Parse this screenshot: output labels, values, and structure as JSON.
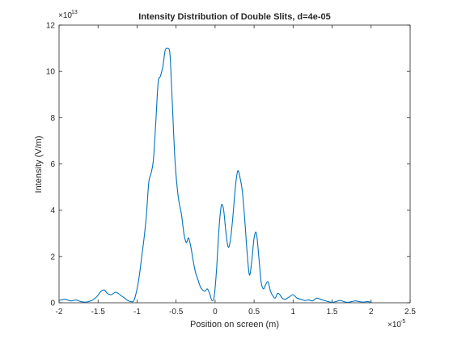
{
  "chart_data": {
    "type": "line",
    "title": "Intensity Distribution of Double Slits, d=4e-05",
    "xlabel": "Position on screen (m)",
    "ylabel": "Intensity (V/m)",
    "x_exponent_label": "×10",
    "x_exponent_power": "-5",
    "y_exponent_label": "×10",
    "y_exponent_power": "13",
    "xlim": [
      -2,
      2.5
    ],
    "ylim": [
      0,
      12
    ],
    "xticks": [
      -2,
      -1.5,
      -1,
      -0.5,
      0,
      0.5,
      1,
      1.5,
      2,
      2.5
    ],
    "xtick_labels": [
      "-2",
      "-1.5",
      "-1",
      "-0.5",
      "0",
      "0.5",
      "1",
      "1.5",
      "2",
      "2.5"
    ],
    "yticks": [
      0,
      2,
      4,
      6,
      8,
      10,
      12
    ],
    "ytick_labels": [
      "0",
      "2",
      "4",
      "6",
      "8",
      "10",
      "12"
    ],
    "grid": false,
    "line_color": "#0072bd",
    "series": [
      {
        "x": [
          -2.0,
          -1.92,
          -1.85,
          -1.78,
          -1.72,
          -1.65,
          -1.58,
          -1.52,
          -1.46,
          -1.42,
          -1.38,
          -1.33,
          -1.28,
          -1.24,
          -1.2,
          -1.16,
          -1.12,
          -1.08,
          -1.04,
          -1.0,
          -0.97,
          -0.94,
          -0.91,
          -0.88,
          -0.85,
          -0.82,
          -0.79,
          -0.76,
          -0.73,
          -0.7,
          -0.67,
          -0.64,
          -0.61,
          -0.58,
          -0.56,
          -0.54,
          -0.52,
          -0.5,
          -0.48,
          -0.46,
          -0.43,
          -0.4,
          -0.37,
          -0.34,
          -0.31,
          -0.28,
          -0.25,
          -0.22,
          -0.19,
          -0.16,
          -0.13,
          -0.1,
          -0.07,
          -0.04,
          -0.01,
          0.02,
          0.05,
          0.08,
          0.11,
          0.14,
          0.17,
          0.2,
          0.23,
          0.26,
          0.29,
          0.32,
          0.35,
          0.38,
          0.41,
          0.44,
          0.47,
          0.5,
          0.53,
          0.56,
          0.59,
          0.62,
          0.65,
          0.68,
          0.71,
          0.74,
          0.77,
          0.8,
          0.83,
          0.86,
          0.9,
          0.95,
          1.0,
          1.05,
          1.1,
          1.15,
          1.2,
          1.25,
          1.3,
          1.35,
          1.4,
          1.45,
          1.5,
          1.55,
          1.6,
          1.65,
          1.7,
          1.75,
          1.8,
          1.85,
          1.9,
          1.95,
          2.0
        ],
        "y": [
          0.1,
          0.15,
          0.08,
          0.12,
          0.05,
          0.03,
          0.1,
          0.25,
          0.5,
          0.55,
          0.4,
          0.35,
          0.45,
          0.4,
          0.3,
          0.2,
          0.1,
          0.05,
          0.1,
          0.6,
          1.2,
          2.0,
          2.8,
          3.8,
          5.2,
          5.6,
          6.2,
          7.8,
          9.5,
          9.8,
          10.2,
          10.9,
          11.0,
          10.8,
          9.5,
          8.0,
          6.5,
          5.5,
          4.8,
          4.3,
          3.8,
          3.0,
          2.6,
          2.8,
          2.4,
          1.8,
          1.3,
          1.0,
          0.7,
          0.55,
          0.5,
          0.6,
          0.4,
          0.1,
          0.3,
          1.5,
          3.2,
          4.2,
          4.0,
          3.0,
          2.4,
          2.8,
          3.8,
          5.0,
          5.7,
          5.4,
          4.8,
          3.6,
          2.2,
          1.2,
          1.8,
          2.8,
          3.0,
          2.0,
          0.9,
          0.6,
          0.8,
          0.9,
          0.5,
          0.3,
          0.2,
          0.4,
          0.35,
          0.2,
          0.15,
          0.25,
          0.35,
          0.2,
          0.15,
          0.1,
          0.12,
          0.08,
          0.2,
          0.15,
          0.1,
          0.05,
          0.02,
          0.05,
          0.1,
          0.05,
          0.02,
          0.05,
          0.08,
          0.05,
          0.03,
          0.05,
          0.02
        ]
      }
    ]
  }
}
